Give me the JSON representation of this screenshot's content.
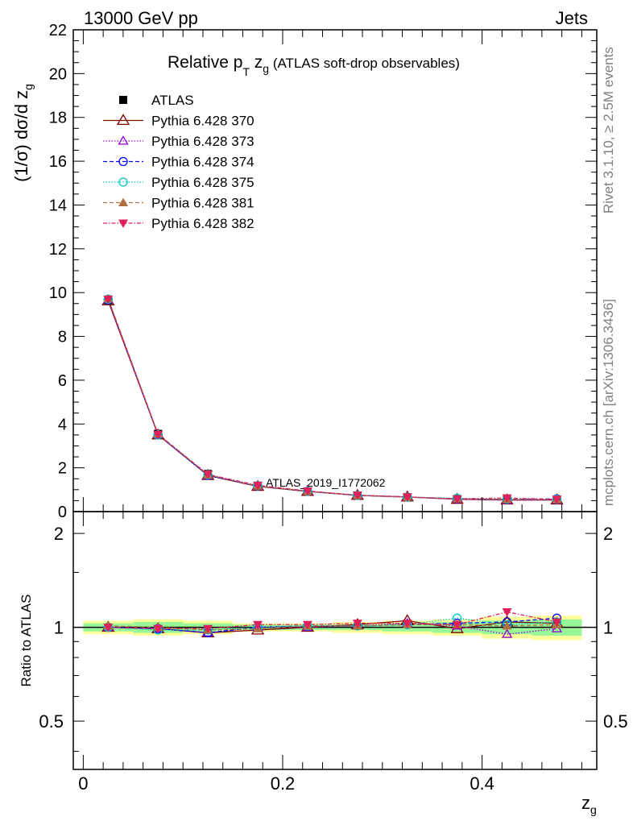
{
  "header": {
    "left": "13000 GeV pp",
    "right": "Jets"
  },
  "title": {
    "main": "Relative p",
    "sub": "T",
    "mid": " z",
    "sub2": "g",
    "tail": " (ATLAS soft-drop observables)"
  },
  "side_text": {
    "top": "Rivet 3.1.10, ≥ 2.5M events",
    "bottom": "mcplots.cern.ch [arXiv:1306.3436]"
  },
  "watermark": "ATLAS_2019_I1772062",
  "chart_data": [
    {
      "type": "line",
      "panel": "main",
      "ylabel": "(1/σ) dσ/d z",
      "ylabel_sub": "g",
      "ylim": [
        0,
        22
      ],
      "yticks": [
        0,
        2,
        4,
        6,
        8,
        10,
        12,
        14,
        16,
        18,
        20,
        22
      ],
      "x": [
        0.025,
        0.075,
        0.125,
        0.175,
        0.225,
        0.275,
        0.325,
        0.375,
        0.425,
        0.475
      ],
      "series": [
        {
          "name": "ATLAS",
          "color": "#000000",
          "marker": "square",
          "values": [
            9.65,
            3.55,
            1.72,
            1.18,
            0.92,
            0.73,
            0.65,
            0.57,
            0.55,
            0.54
          ]
        },
        {
          "name": "Pythia 6.428 370",
          "color": "#800000",
          "marker": "triangle-open",
          "dash": "",
          "values": [
            9.62,
            3.5,
            1.65,
            1.15,
            0.92,
            0.74,
            0.67,
            0.56,
            0.53,
            0.53
          ]
        },
        {
          "name": "Pythia 6.428 373",
          "color": "#9400d3",
          "marker": "triangle-open-small",
          "dash": "1.5,2",
          "values": [
            9.68,
            3.52,
            1.66,
            1.17,
            0.93,
            0.74,
            0.66,
            0.57,
            0.52,
            0.53
          ]
        },
        {
          "name": "Pythia 6.428 374",
          "color": "#0000ff",
          "marker": "circle-open",
          "dash": "5,3",
          "values": [
            9.67,
            3.51,
            1.65,
            1.17,
            0.93,
            0.74,
            0.66,
            0.58,
            0.56,
            0.58
          ]
        },
        {
          "name": "Pythia 6.428 375",
          "color": "#00c8c8",
          "marker": "circle-open",
          "dash": "1.5,2",
          "values": [
            9.7,
            3.5,
            1.68,
            1.18,
            0.93,
            0.74,
            0.66,
            0.61,
            0.56,
            0.56
          ]
        },
        {
          "name": "Pythia 6.428 381",
          "color": "#b07040",
          "marker": "triangle",
          "dash": "5,3",
          "values": [
            9.72,
            3.55,
            1.68,
            1.17,
            0.93,
            0.74,
            0.66,
            0.58,
            0.56,
            0.55
          ]
        },
        {
          "name": "Pythia 6.428 382",
          "color": "#e0205a",
          "marker": "triangle-down",
          "dash": "5,2,1.5,2",
          "values": [
            9.7,
            3.52,
            1.7,
            1.2,
            0.94,
            0.75,
            0.67,
            0.58,
            0.62,
            0.56
          ]
        }
      ]
    },
    {
      "type": "line",
      "panel": "ratio",
      "ylabel": "Ratio to ATLAS",
      "xlabel": "z",
      "xlabel_sub": "g",
      "xlim": [
        -0.01,
        0.515
      ],
      "xticks": [
        0,
        0.2,
        0.4
      ],
      "ylim": [
        0.35,
        2.35
      ],
      "yticks": [
        0.5,
        1,
        2
      ],
      "bands": {
        "x_low": [
          0.0,
          0.05,
          0.1,
          0.15,
          0.2,
          0.25,
          0.3,
          0.35,
          0.4,
          0.45
        ],
        "x_high": [
          0.05,
          0.1,
          0.15,
          0.2,
          0.25,
          0.3,
          0.35,
          0.4,
          0.45,
          0.5
        ],
        "inner": [
          0.03,
          0.04,
          0.03,
          0.02,
          0.02,
          0.02,
          0.03,
          0.04,
          0.05,
          0.06
        ],
        "outer": [
          0.05,
          0.06,
          0.05,
          0.03,
          0.03,
          0.04,
          0.05,
          0.06,
          0.08,
          0.09
        ],
        "inner_color": "#98f898",
        "outer_color": "#ffff99"
      },
      "series": [
        {
          "name": "Pythia 6.428 370",
          "values": [
            1.0,
            0.99,
            0.96,
            0.98,
            1.0,
            1.02,
            1.05,
            0.99,
            1.04,
            1.03
          ]
        },
        {
          "name": "Pythia 6.428 373",
          "values": [
            1.0,
            0.99,
            0.96,
            1.0,
            1.0,
            1.01,
            1.03,
            1.01,
            0.95,
            0.99
          ]
        },
        {
          "name": "Pythia 6.428 374",
          "values": [
            1.0,
            0.99,
            0.96,
            1.0,
            1.01,
            1.01,
            1.02,
            1.03,
            1.04,
            1.07
          ]
        },
        {
          "name": "Pythia 6.428 375",
          "values": [
            1.0,
            0.98,
            0.98,
            1.0,
            1.01,
            1.01,
            1.02,
            1.07,
            1.02,
            1.04
          ]
        },
        {
          "name": "Pythia 6.428 381",
          "values": [
            1.01,
            1.0,
            0.98,
            0.99,
            1.01,
            1.01,
            1.02,
            1.02,
            1.01,
            1.02
          ]
        },
        {
          "name": "Pythia 6.428 382",
          "values": [
            1.0,
            0.99,
            0.99,
            1.02,
            1.02,
            1.03,
            1.03,
            1.02,
            1.12,
            1.04
          ]
        }
      ]
    }
  ]
}
